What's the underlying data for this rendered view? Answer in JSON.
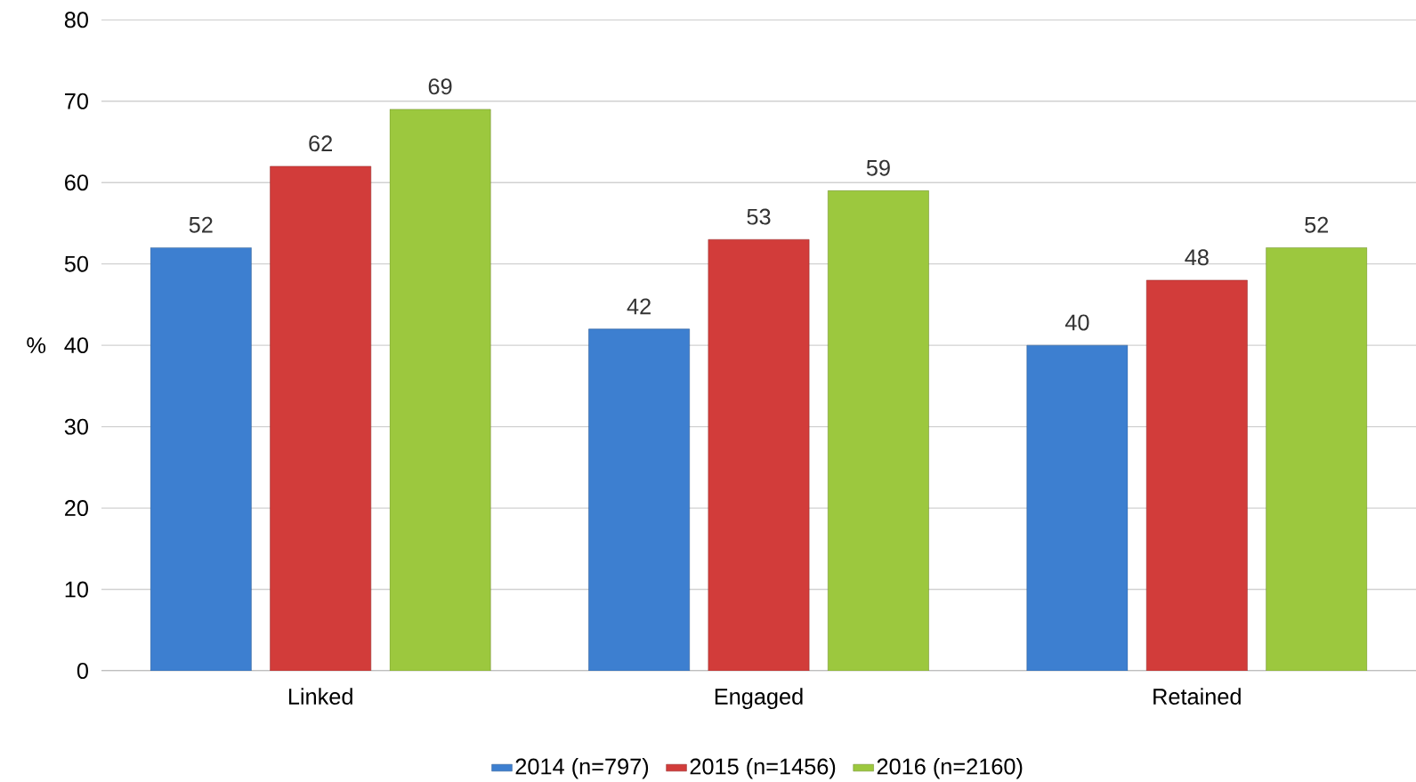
{
  "chart_data": {
    "type": "bar",
    "ylabel": "%",
    "categories": [
      "Linked",
      "Engaged",
      "Retained"
    ],
    "series": [
      {
        "name": "2014 (n=797)",
        "color": "#3d7fd0",
        "values": [
          52,
          42,
          40
        ]
      },
      {
        "name": "2015 (n=1456)",
        "color": "#d23c3a",
        "values": [
          62,
          53,
          48
        ]
      },
      {
        "name": "2016 (n=2160)",
        "color": "#9cc83e",
        "values": [
          69,
          59,
          52
        ]
      }
    ],
    "ylim": [
      0,
      80
    ],
    "yticks": [
      0,
      10,
      20,
      30,
      40,
      50,
      60,
      70,
      80
    ],
    "grid": "y",
    "legend": "bottom",
    "data_labels": true
  }
}
